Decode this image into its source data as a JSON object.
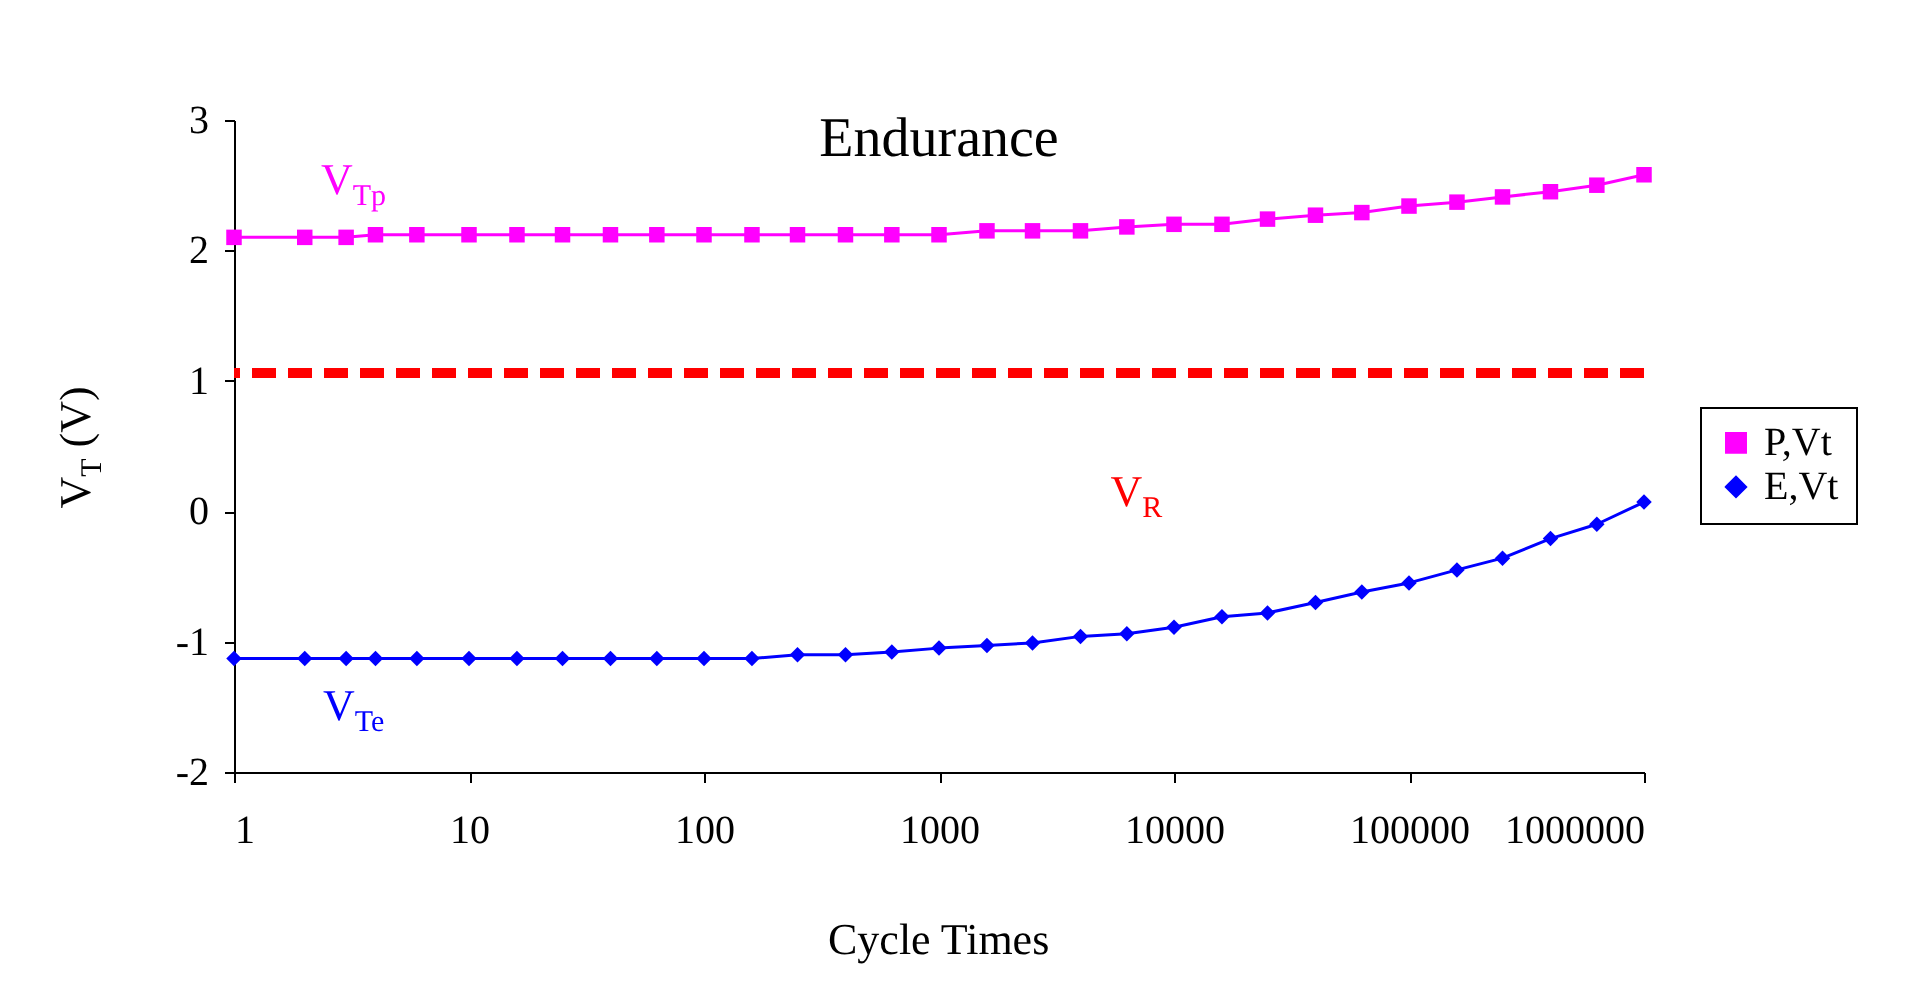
{
  "chart_data": {
    "type": "line",
    "title": "Endurance",
    "xlabel": "Cycle Times",
    "ylabel": "V$_{T}$ (V)",
    "x": [
      1,
      2,
      3,
      4,
      6,
      10,
      16,
      25,
      40,
      63,
      100,
      160,
      250,
      400,
      630,
      1000,
      1600,
      2500,
      4000,
      6300,
      10000,
      16000,
      25000,
      40000,
      63000,
      100000,
      160000,
      250000,
      400000,
      630000,
      1000000
    ],
    "series": [
      {
        "name": "P,Vt",
        "color": "#ff00ff",
        "marker": "square",
        "values": [
          2.1,
          2.1,
          2.1,
          2.12,
          2.12,
          2.12,
          2.12,
          2.12,
          2.12,
          2.12,
          2.12,
          2.12,
          2.12,
          2.12,
          2.12,
          2.12,
          2.15,
          2.15,
          2.15,
          2.18,
          2.2,
          2.2,
          2.24,
          2.27,
          2.29,
          2.34,
          2.37,
          2.41,
          2.45,
          2.5,
          2.58
        ]
      },
      {
        "name": "E,Vt",
        "color": "#0000ff",
        "marker": "diamond",
        "values": [
          -1.13,
          -1.13,
          -1.13,
          -1.13,
          -1.13,
          -1.13,
          -1.13,
          -1.13,
          -1.13,
          -1.13,
          -1.13,
          -1.13,
          -1.1,
          -1.1,
          -1.08,
          -1.05,
          -1.03,
          -1.01,
          -0.96,
          -0.94,
          -0.89,
          -0.81,
          -0.78,
          -0.7,
          -0.62,
          -0.55,
          -0.45,
          -0.36,
          -0.21,
          -0.1,
          0.07
        ]
      }
    ],
    "log": "x",
    "xlim": [
      1,
      1000000
    ],
    "xticks": [
      1,
      10,
      100,
      1000,
      10000,
      100000,
      1000000
    ],
    "ylim": [
      -2,
      3
    ],
    "yticks": [
      {
        "value": -2,
        "label": "-2"
      },
      {
        "value": -1,
        "label": "-1"
      },
      0,
      1,
      2,
      3
    ],
    "ref_lines": [
      {
        "axis": "y",
        "value": 1.06,
        "color": "#ff0000",
        "line_style": "dashed"
      }
    ],
    "annotations": [
      "V$_{Tp}$",
      "V$_{Te}$",
      "V$_{R}$"
    ],
    "grid": false,
    "legend": "right"
  }
}
